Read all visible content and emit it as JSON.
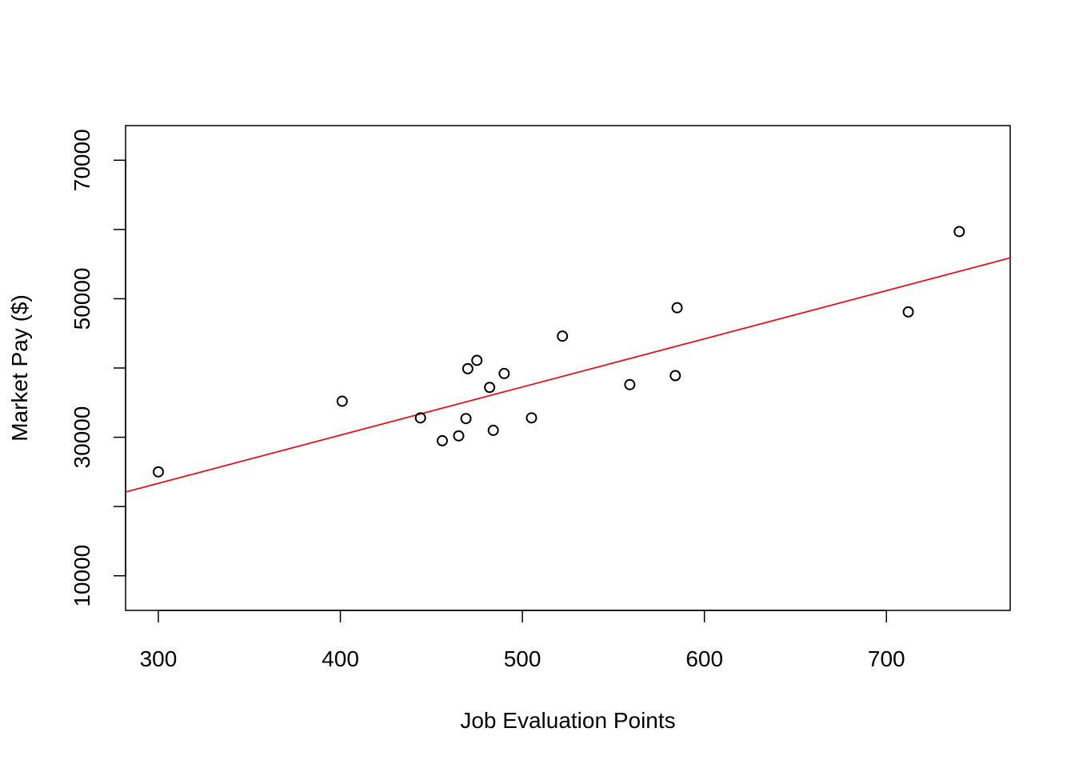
{
  "chart_data": {
    "type": "scatter",
    "title": "",
    "xlabel": "Job Evaluation Points",
    "ylabel": "Market Pay ($)",
    "xlim": [
      282,
      768
    ],
    "ylim": [
      5000,
      75000
    ],
    "x_ticks": [
      300,
      400,
      500,
      600,
      700
    ],
    "y_ticks": [
      10000,
      20000,
      30000,
      40000,
      50000,
      60000,
      70000
    ],
    "y_tick_labels": [
      "10000",
      "",
      "30000",
      "",
      "50000",
      "",
      "70000"
    ],
    "grid": false,
    "point_color": "#000000",
    "line_color": "#e8121b",
    "points": [
      {
        "x": 300,
        "y": 25000
      },
      {
        "x": 401,
        "y": 35200
      },
      {
        "x": 444,
        "y": 32800
      },
      {
        "x": 456,
        "y": 29500
      },
      {
        "x": 465,
        "y": 30200
      },
      {
        "x": 469,
        "y": 32700
      },
      {
        "x": 470,
        "y": 39900
      },
      {
        "x": 475,
        "y": 41100
      },
      {
        "x": 482,
        "y": 37200
      },
      {
        "x": 484,
        "y": 31000
      },
      {
        "x": 490,
        "y": 39200
      },
      {
        "x": 505,
        "y": 32800
      },
      {
        "x": 522,
        "y": 44600
      },
      {
        "x": 559,
        "y": 37600
      },
      {
        "x": 584,
        "y": 38900
      },
      {
        "x": 585,
        "y": 48700
      },
      {
        "x": 712,
        "y": 48100
      },
      {
        "x": 740,
        "y": 59700
      }
    ],
    "regression_line": {
      "from": {
        "x": 282,
        "y": 22100
      },
      "to": {
        "x": 768,
        "y": 55900
      }
    }
  }
}
